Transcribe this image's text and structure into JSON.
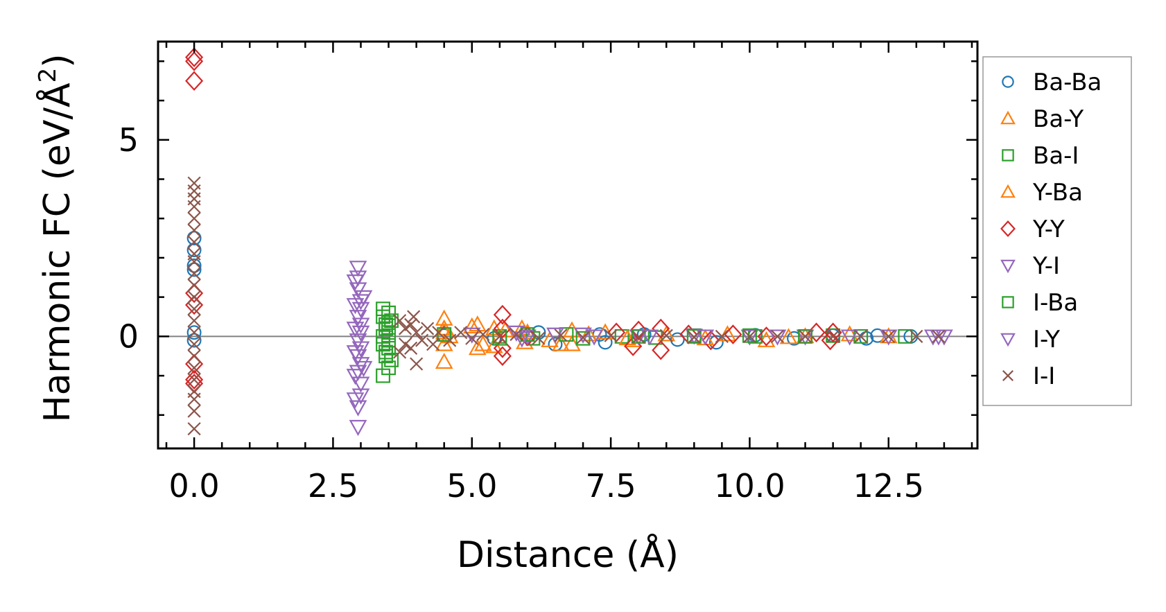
{
  "chart_data": {
    "type": "scatter",
    "title": "",
    "xlabel": "Distance (Å)",
    "ylabel_main": "Harmonic FC (eV/Å",
    "ylabel_sup": "2",
    "ylabel_end": ")",
    "xlim": [
      -0.65,
      14.1
    ],
    "ylim": [
      -2.85,
      7.5
    ],
    "xticks": [
      0.0,
      2.5,
      5.0,
      7.5,
      10.0,
      12.5
    ],
    "xtick_labels": [
      "0.0",
      "2.5",
      "5.0",
      "7.5",
      "10.0",
      "12.5"
    ],
    "yticks": [
      0,
      5
    ],
    "ytick_labels": [
      "0",
      "5"
    ],
    "zero_line": true,
    "grid": false,
    "legend_position": "right-outside",
    "series": [
      {
        "name": "Ba-Ba",
        "marker": "circle",
        "color": "#1f77b4",
        "points": [
          [
            0,
            2.5
          ],
          [
            0,
            2.2
          ],
          [
            0,
            1.8
          ],
          [
            0,
            1.7
          ],
          [
            0,
            0.1
          ],
          [
            0,
            -0.1
          ],
          [
            4.5,
            0.02
          ],
          [
            5.4,
            -0.05
          ],
          [
            6.2,
            0.1
          ],
          [
            6.5,
            -0.2
          ],
          [
            7.3,
            0.05
          ],
          [
            7.4,
            -0.15
          ],
          [
            8.1,
            0.05
          ],
          [
            8.7,
            -0.08
          ],
          [
            9.4,
            -0.15
          ],
          [
            10.1,
            0.03
          ],
          [
            10.8,
            -0.05
          ],
          [
            11.5,
            0.02
          ],
          [
            12.1,
            -0.05
          ],
          [
            12.3,
            0.02
          ],
          [
            12.9,
            0.0
          ]
        ]
      },
      {
        "name": "Ba-Y",
        "marker": "triangle-up",
        "color": "#ff7f0e",
        "points": [
          [
            4.5,
            0.45
          ],
          [
            4.5,
            -0.65
          ],
          [
            4.5,
            0.2
          ],
          [
            4.5,
            -0.2
          ],
          [
            4.6,
            0.0
          ],
          [
            5.1,
            -0.3
          ],
          [
            5.1,
            0.3
          ],
          [
            5.4,
            -0.25
          ],
          [
            5.4,
            0.2
          ],
          [
            5.9,
            0.2
          ],
          [
            5.95,
            -0.15
          ],
          [
            6.6,
            -0.2
          ],
          [
            6.8,
            -0.2
          ],
          [
            6.8,
            0.15
          ],
          [
            7.4,
            0.1
          ],
          [
            7.9,
            -0.1
          ],
          [
            8.5,
            0.05
          ],
          [
            9.2,
            -0.05
          ],
          [
            10.3,
            -0.1
          ],
          [
            11.0,
            0.0
          ],
          [
            11.8,
            0.05
          ],
          [
            12.5,
            0.0
          ]
        ]
      },
      {
        "name": "Ba-I",
        "marker": "square",
        "color": "#2ca02c",
        "points": [
          [
            3.4,
            0.7
          ],
          [
            3.4,
            0.5
          ],
          [
            3.4,
            -1.0
          ],
          [
            3.45,
            0.3
          ],
          [
            3.45,
            -0.4
          ],
          [
            3.5,
            -0.8
          ],
          [
            3.5,
            0.1
          ],
          [
            3.5,
            -0.1
          ],
          [
            3.55,
            0.4
          ],
          [
            3.55,
            -0.6
          ],
          [
            3.4,
            -0.2
          ],
          [
            3.5,
            0.6
          ],
          [
            3.4,
            0.0
          ],
          [
            5.5,
            0.0
          ],
          [
            6.1,
            -0.05
          ],
          [
            6.7,
            0.05
          ],
          [
            7.7,
            0.0
          ],
          [
            8.3,
            -0.03
          ],
          [
            9.0,
            0.02
          ],
          [
            10.1,
            0.0
          ],
          [
            11.5,
            0.02
          ],
          [
            12.8,
            0.0
          ]
        ]
      },
      {
        "name": "Y-Ba",
        "marker": "triangle-up",
        "color": "#ff7f0e",
        "points": [
          [
            4.5,
            0.1
          ],
          [
            5.0,
            0.25
          ],
          [
            5.2,
            -0.2
          ],
          [
            5.6,
            0.15
          ],
          [
            6.0,
            0.1
          ],
          [
            6.4,
            -0.1
          ],
          [
            7.1,
            0.05
          ],
          [
            7.8,
            -0.05
          ],
          [
            9.6,
            0.05
          ],
          [
            10.7,
            -0.02
          ]
        ]
      },
      {
        "name": "Y-Y",
        "marker": "diamond",
        "color": "#d62728",
        "points": [
          [
            0,
            7.1
          ],
          [
            0,
            7.0
          ],
          [
            0,
            6.5
          ],
          [
            0,
            1.1
          ],
          [
            0,
            0.8
          ],
          [
            0,
            -0.7
          ],
          [
            0,
            -1.1
          ],
          [
            0,
            -1.2
          ],
          [
            5.55,
            0.55
          ],
          [
            5.55,
            -0.5
          ],
          [
            5.55,
            0.2
          ],
          [
            5.55,
            -0.3
          ],
          [
            6.0,
            0.0
          ],
          [
            7.6,
            0.1
          ],
          [
            7.9,
            -0.25
          ],
          [
            8.0,
            0.15
          ],
          [
            8.4,
            -0.35
          ],
          [
            8.4,
            0.2
          ],
          [
            8.9,
            0.05
          ],
          [
            9.3,
            -0.1
          ],
          [
            9.7,
            0.05
          ],
          [
            10.3,
            0.0
          ],
          [
            11.2,
            0.1
          ],
          [
            11.45,
            -0.1
          ],
          [
            11.5,
            0.1
          ]
        ]
      },
      {
        "name": "Y-I",
        "marker": "triangle-down",
        "color": "#9467bd",
        "points": [
          [
            2.95,
            1.75
          ],
          [
            2.95,
            1.5
          ],
          [
            2.95,
            1.2
          ],
          [
            3.0,
            0.9
          ],
          [
            3.0,
            0.7
          ],
          [
            2.95,
            0.5
          ],
          [
            3.0,
            0.3
          ],
          [
            3.0,
            0.1
          ],
          [
            2.95,
            -0.1
          ],
          [
            3.0,
            -0.3
          ],
          [
            2.95,
            -0.5
          ],
          [
            3.0,
            -0.7
          ],
          [
            2.95,
            -0.9
          ],
          [
            3.0,
            -1.2
          ],
          [
            3.0,
            -1.5
          ],
          [
            2.95,
            -1.8
          ],
          [
            2.95,
            -2.3
          ],
          [
            3.05,
            1.0
          ],
          [
            3.05,
            -0.8
          ],
          [
            5.8,
            0.1
          ],
          [
            6.0,
            0.0
          ],
          [
            7.0,
            0.05
          ],
          [
            8.0,
            0.0
          ],
          [
            9.0,
            0.02
          ],
          [
            10.0,
            0.0
          ],
          [
            11.0,
            0.0
          ],
          [
            12.5,
            0.0
          ],
          [
            13.3,
            0.0
          ],
          [
            13.5,
            0.0
          ]
        ]
      },
      {
        "name": "I-Ba",
        "marker": "square",
        "color": "#2ca02c",
        "points": [
          [
            3.45,
            0.2
          ],
          [
            3.5,
            -0.3
          ],
          [
            3.45,
            -0.5
          ],
          [
            3.5,
            0.35
          ],
          [
            4.5,
            0.05
          ],
          [
            5.5,
            -0.05
          ],
          [
            6.0,
            0.05
          ],
          [
            7.0,
            -0.05
          ],
          [
            8.0,
            0.0
          ],
          [
            9.0,
            0.0
          ],
          [
            10.0,
            0.02
          ],
          [
            11.0,
            0.0
          ],
          [
            12.0,
            0.0
          ]
        ]
      },
      {
        "name": "I-Y",
        "marker": "triangle-down",
        "color": "#9467bd",
        "points": [
          [
            2.9,
            1.4
          ],
          [
            2.9,
            0.8
          ],
          [
            2.9,
            0.2
          ],
          [
            2.9,
            -0.4
          ],
          [
            2.9,
            -1.0
          ],
          [
            2.9,
            -1.6
          ],
          [
            5.0,
            0.05
          ],
          [
            5.9,
            -0.05
          ],
          [
            6.5,
            0.05
          ],
          [
            7.2,
            0.0
          ],
          [
            8.2,
            0.0
          ],
          [
            9.2,
            0.0
          ],
          [
            10.5,
            0.0
          ],
          [
            11.8,
            0.0
          ],
          [
            13.4,
            0.0
          ]
        ]
      },
      {
        "name": "I-I",
        "marker": "x",
        "color": "#8c564b",
        "points": [
          [
            0,
            3.9
          ],
          [
            0,
            3.7
          ],
          [
            0,
            3.5
          ],
          [
            0,
            3.3
          ],
          [
            0,
            3.0
          ],
          [
            0,
            2.7
          ],
          [
            0,
            2.4
          ],
          [
            0,
            2.1
          ],
          [
            0,
            1.9
          ],
          [
            0,
            1.6
          ],
          [
            0,
            1.3
          ],
          [
            0,
            1.0
          ],
          [
            0,
            0.7
          ],
          [
            0,
            0.4
          ],
          [
            0,
            0.1
          ],
          [
            0,
            -0.2
          ],
          [
            0,
            -0.5
          ],
          [
            0,
            -0.8
          ],
          [
            0,
            -1.1
          ],
          [
            0,
            -1.4
          ],
          [
            0,
            -1.6
          ],
          [
            0,
            -1.9
          ],
          [
            0,
            -2.35
          ],
          [
            3.7,
            0.4
          ],
          [
            3.7,
            -0.4
          ],
          [
            3.8,
            0.2
          ],
          [
            3.8,
            -0.2
          ],
          [
            3.9,
            0.3
          ],
          [
            3.9,
            -0.3
          ],
          [
            4.0,
            0.1
          ],
          [
            4.0,
            -0.7
          ],
          [
            3.95,
            0.5
          ],
          [
            4.1,
            -0.1
          ],
          [
            4.2,
            0.2
          ],
          [
            4.3,
            -0.2
          ],
          [
            4.4,
            0.1
          ],
          [
            4.6,
            -0.1
          ],
          [
            4.8,
            0.1
          ],
          [
            5.0,
            -0.05
          ],
          [
            5.2,
            0.05
          ],
          [
            5.5,
            0.0
          ],
          [
            5.8,
            0.05
          ],
          [
            6.2,
            -0.05
          ],
          [
            6.6,
            0.03
          ],
          [
            7.0,
            -0.03
          ],
          [
            7.5,
            0.02
          ],
          [
            8.0,
            -0.02
          ],
          [
            8.5,
            0.02
          ],
          [
            9.0,
            -0.02
          ],
          [
            9.5,
            0.0
          ],
          [
            10.0,
            0.0
          ],
          [
            10.5,
            0.0
          ],
          [
            11.0,
            0.0
          ],
          [
            11.5,
            0.0
          ],
          [
            12.0,
            0.0
          ],
          [
            12.5,
            0.0
          ],
          [
            13.0,
            0.0
          ],
          [
            13.4,
            0.0
          ]
        ]
      }
    ],
    "legend_order": [
      "Ba-Ba",
      "Ba-Y",
      "Ba-I",
      "Y-Ba",
      "Y-Y",
      "Y-I",
      "I-Ba",
      "I-Y",
      "I-I"
    ]
  }
}
